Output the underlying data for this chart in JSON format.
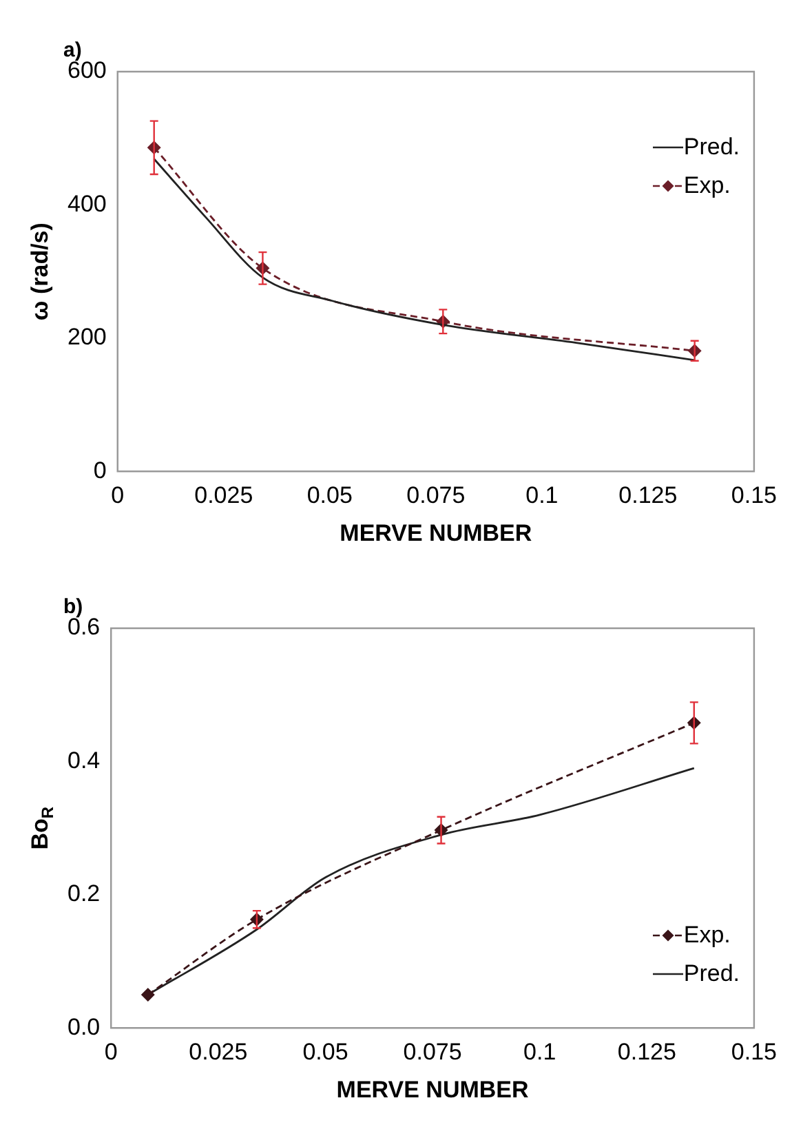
{
  "chart_data": [
    {
      "type": "line",
      "title": "a)",
      "xlabel": "MERVE NUMBER",
      "ylabel": "ω (rad/s)",
      "xlim": [
        0,
        0.15
      ],
      "xticks": [
        0,
        0.025,
        0.05,
        0.075,
        0.1,
        0.125,
        0.15
      ],
      "ylim": [
        0,
        600
      ],
      "yticks": [
        0,
        200,
        400,
        600
      ],
      "legend": "top right",
      "series": [
        {
          "name": "Pred.",
          "color": "#222222",
          "line_style": "solid",
          "marker": "none",
          "x": [
            0.0086,
            0.0207,
            0.0342,
            0.0506,
            0.0767,
            0.1081,
            0.136
          ],
          "values": [
            469,
            382,
            291,
            256,
            220,
            193,
            167
          ]
        },
        {
          "name": "Exp.",
          "color": "#6b1e28",
          "line_style": "dashed",
          "marker": "diamond",
          "x": [
            0.0086,
            0.0342,
            0.0767,
            0.136
          ],
          "values": [
            486,
            305,
            225,
            181
          ],
          "errors": [
            40,
            24,
            18,
            15
          ]
        }
      ]
    },
    {
      "type": "line",
      "title": "b)",
      "xlabel": "MERVE NUMBER",
      "ylabel": "Bo$_{R}$",
      "xlim": [
        0,
        0.15
      ],
      "xticks": [
        0,
        0.025,
        0.05,
        0.075,
        0.1,
        0.125,
        0.15
      ],
      "ylim": [
        0,
        0.6
      ],
      "yticks": [
        {
          "value": 0,
          "label": "0.0"
        },
        {
          "value": 0.2,
          "label": "0.2"
        },
        {
          "value": 0.4,
          "label": "0.4"
        },
        {
          "value": 0.6,
          "label": "0.6"
        }
      ],
      "legend": "bottom right",
      "series": [
        {
          "name": "Exp.",
          "color": "#3a1418",
          "line_style": "dashed",
          "marker": "diamond",
          "x": [
            0.0086,
            0.034,
            0.077,
            0.136
          ],
          "values": [
            0.05,
            0.163,
            0.297,
            0.458
          ],
          "errors": [
            null,
            0.013,
            0.02,
            0.031
          ]
        },
        {
          "name": "Pred.",
          "color": "#222222",
          "line_style": "solid",
          "marker": "none",
          "x": [
            0.0086,
            0.034,
            0.05,
            0.077,
            0.1,
            0.136
          ],
          "values": [
            0.05,
            0.148,
            0.226,
            0.29,
            0.32,
            0.39
          ]
        }
      ]
    }
  ]
}
